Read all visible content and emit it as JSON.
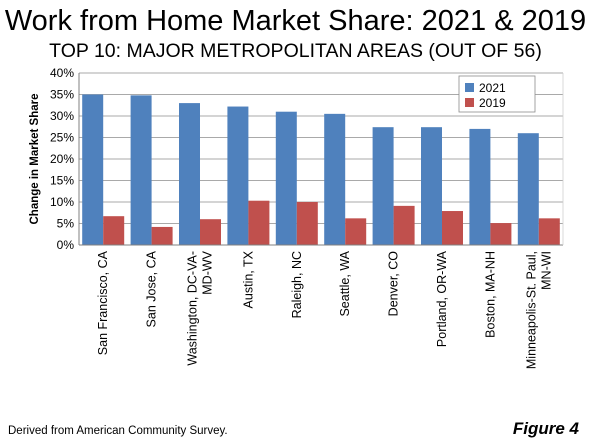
{
  "header": {
    "title": "Work from Home Market Share: 2021 & 2019",
    "subtitle": "TOP 10: MAJOR METROPOLITAN AREAS (OUT OF 56)"
  },
  "footer": {
    "source": "Derived from American Community Survey.",
    "figure_label": "Figure 4"
  },
  "colors": {
    "series_2021": "#4F81BD",
    "series_2019": "#C0504D",
    "grid": "#8c8c8c"
  },
  "chart_data": {
    "type": "bar",
    "ylabel": "Change in Market Share",
    "xlabel": "",
    "ylim": [
      0,
      40
    ],
    "yticks": [
      0,
      5,
      10,
      15,
      20,
      25,
      30,
      35,
      40
    ],
    "ytick_labels": [
      "0%",
      "5%",
      "10%",
      "15%",
      "20%",
      "25%",
      "30%",
      "35%",
      "40%"
    ],
    "grid": true,
    "legend_position": "top-right",
    "categories": [
      [
        "San Francisco, CA"
      ],
      [
        "San Jose, CA"
      ],
      [
        "Washington, DC-VA-",
        "MD-WV"
      ],
      [
        "Austin, TX"
      ],
      [
        "Raleigh, NC"
      ],
      [
        "Seattle, WA"
      ],
      [
        "Denver, CO"
      ],
      [
        "Portland, OR-WA"
      ],
      [
        "Boston, MA-NH"
      ],
      [
        "Minneapolis-St. Paul,",
        "MN-WI"
      ]
    ],
    "series": [
      {
        "name": "2021",
        "color": "#4F81BD",
        "values": [
          35.0,
          34.8,
          33.0,
          32.2,
          31.0,
          30.5,
          27.4,
          27.4,
          27.0,
          26.0
        ]
      },
      {
        "name": "2019",
        "color": "#C0504D",
        "values": [
          6.7,
          4.2,
          6.0,
          10.3,
          10.0,
          6.2,
          9.1,
          7.9,
          5.1,
          6.2
        ]
      }
    ]
  }
}
